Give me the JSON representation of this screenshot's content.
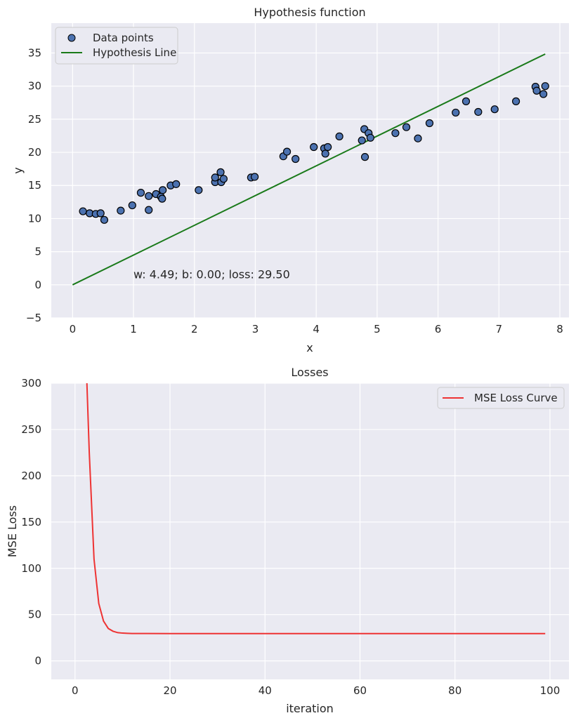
{
  "chart_data": [
    {
      "type": "scatter",
      "title": "Hypothesis function",
      "xlabel": "x",
      "ylabel": "y",
      "xlim": [
        -0.35,
        8.15
      ],
      "ylim": [
        -5,
        39.5
      ],
      "xticks": [
        "0",
        "1",
        "2",
        "3",
        "4",
        "5",
        "6",
        "7",
        "8"
      ],
      "yticks": [
        "−5",
        "0",
        "5",
        "10",
        "15",
        "20",
        "25",
        "30",
        "35"
      ],
      "grid": true,
      "legend_position": "top-left",
      "annotation": {
        "text": "w: 4.49; b: 0.00; loss: 29.50",
        "x": 1.0,
        "y": 1.5
      },
      "series": [
        {
          "name": "Data points",
          "kind": "scatter",
          "color": "#4c72b0",
          "edgecolor": "#000000",
          "x": [
            0.17,
            0.28,
            0.38,
            0.46,
            0.52,
            0.79,
            0.98,
            1.12,
            1.25,
            1.25,
            1.37,
            1.45,
            1.47,
            1.48,
            1.61,
            1.7,
            2.07,
            2.34,
            2.34,
            2.43,
            2.44,
            2.48,
            2.93,
            2.99,
            3.46,
            3.52,
            3.66,
            3.96,
            4.13,
            4.15,
            4.19,
            4.38,
            4.75,
            4.79,
            4.8,
            4.86,
            4.89,
            5.3,
            5.48,
            5.67,
            5.86,
            6.29,
            6.46,
            6.66,
            6.93,
            7.28,
            7.6,
            7.62,
            7.73,
            7.76
          ],
          "y": [
            11.1,
            10.8,
            10.7,
            10.8,
            9.8,
            11.2,
            12.0,
            13.9,
            13.4,
            11.3,
            13.7,
            13.3,
            13.0,
            14.3,
            15.0,
            15.2,
            14.3,
            15.5,
            16.2,
            17.0,
            15.5,
            16.0,
            16.2,
            16.3,
            19.4,
            20.1,
            19.0,
            20.8,
            20.6,
            19.8,
            20.8,
            22.4,
            21.8,
            23.5,
            19.3,
            22.9,
            22.2,
            22.9,
            23.8,
            22.1,
            24.4,
            26.0,
            27.7,
            26.1,
            26.5,
            27.7,
            29.9,
            29.3,
            28.8,
            30.0
          ]
        },
        {
          "name": "Hypothesis Line",
          "kind": "line",
          "color": "#1a7a1a",
          "x": [
            0.0,
            7.76
          ],
          "y": [
            0.0,
            34.84
          ]
        }
      ]
    },
    {
      "type": "line",
      "title": "Losses",
      "xlabel": "iteration",
      "ylabel": "MSE Loss",
      "xlim": [
        -5,
        104
      ],
      "ylim": [
        -20,
        300
      ],
      "xticks": [
        "0",
        "20",
        "40",
        "60",
        "80",
        "100"
      ],
      "yticks": [
        "0",
        "50",
        "100",
        "150",
        "200",
        "250",
        "300"
      ],
      "grid": true,
      "legend_position": "top-right",
      "series": [
        {
          "name": "MSE Loss Curve",
          "color": "#ee3333",
          "x": [
            2.5,
            3,
            4,
            5,
            6,
            7,
            8,
            9,
            10,
            11,
            12,
            15,
            20,
            30,
            40,
            50,
            60,
            70,
            80,
            90,
            99
          ],
          "y": [
            300,
            225,
            110,
            62,
            43,
            35,
            32,
            30.5,
            30,
            29.8,
            29.6,
            29.55,
            29.5,
            29.5,
            29.5,
            29.5,
            29.5,
            29.5,
            29.5,
            29.5,
            29.5
          ]
        }
      ]
    }
  ]
}
